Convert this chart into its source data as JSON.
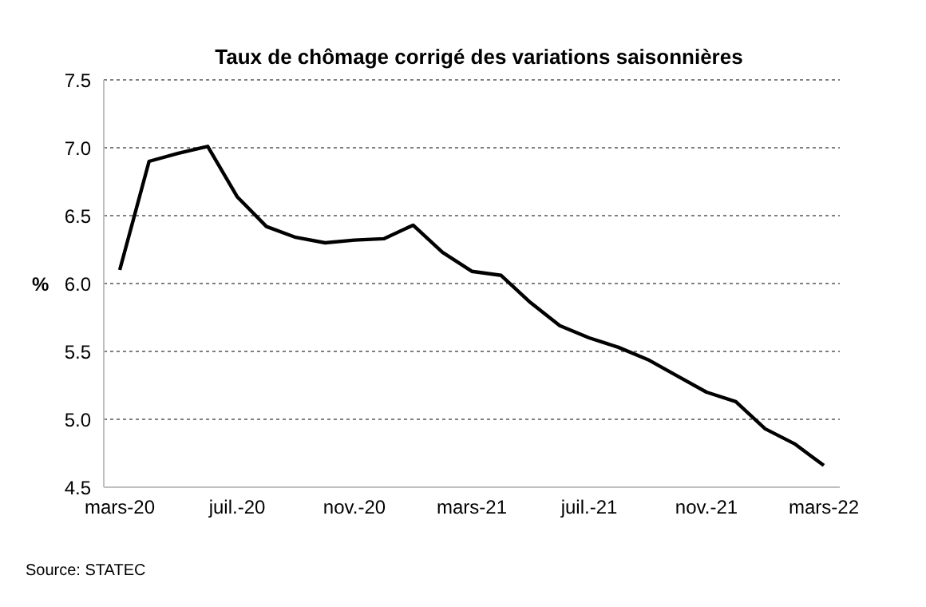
{
  "chart_data": {
    "type": "line",
    "title": "Taux de chômage corrigé des variations saisonnières",
    "ylabel": "%",
    "categories": [
      "mars-20",
      null,
      null,
      null,
      "juil.-20",
      null,
      null,
      null,
      "nov.-20",
      null,
      null,
      null,
      "mars-21",
      null,
      null,
      null,
      "juil.-21",
      null,
      null,
      null,
      "nov.-21",
      null,
      null,
      null,
      "mars-22"
    ],
    "series": [
      {
        "color": "#000000",
        "values": [
          6.1,
          6.9,
          6.96,
          7.01,
          6.64,
          6.42,
          6.34,
          6.3,
          6.32,
          6.33,
          6.43,
          6.23,
          6.09,
          6.06,
          5.86,
          5.69,
          5.6,
          5.53,
          5.44,
          5.32,
          5.2,
          5.13,
          4.93,
          4.82,
          4.66
        ]
      }
    ],
    "ylim": [
      4.5,
      7.5
    ],
    "yticks": [
      {
        "value": 4.5,
        "label": "4.5"
      },
      {
        "value": 5,
        "label": "5.0"
      },
      {
        "value": 5.5,
        "label": "5.5"
      },
      {
        "value": 6,
        "label": "6.0"
      },
      {
        "value": 6.5,
        "label": "6.5"
      },
      {
        "value": 7,
        "label": "7.0"
      },
      {
        "value": 7.5,
        "label": "7.5"
      }
    ],
    "grid": "y",
    "legend": false,
    "marker": "none",
    "line_style": "solid",
    "annotations": [
      "Source: STATEC"
    ]
  }
}
